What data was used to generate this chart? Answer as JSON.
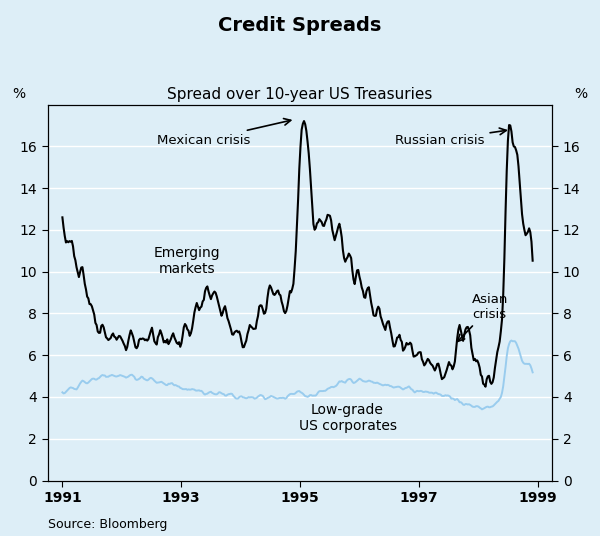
{
  "title": "Credit Spreads",
  "subtitle": "Spread over 10-year US Treasuries",
  "ylabel_left": "%",
  "ylabel_right": "%",
  "source": "Source: Bloomberg",
  "background_color": "#ddeef7",
  "plot_bg_color": "#ddeef7",
  "ylim": [
    0,
    18
  ],
  "yticks": [
    0,
    2,
    4,
    6,
    8,
    10,
    12,
    14,
    16
  ],
  "xlim_start": 1990.75,
  "xlim_end": 1999.25,
  "xticks": [
    1991,
    1993,
    1995,
    1997,
    1999
  ],
  "em_color": "#000000",
  "lg_color": "#99ccee",
  "em_linewidth": 1.5,
  "lg_linewidth": 1.4
}
